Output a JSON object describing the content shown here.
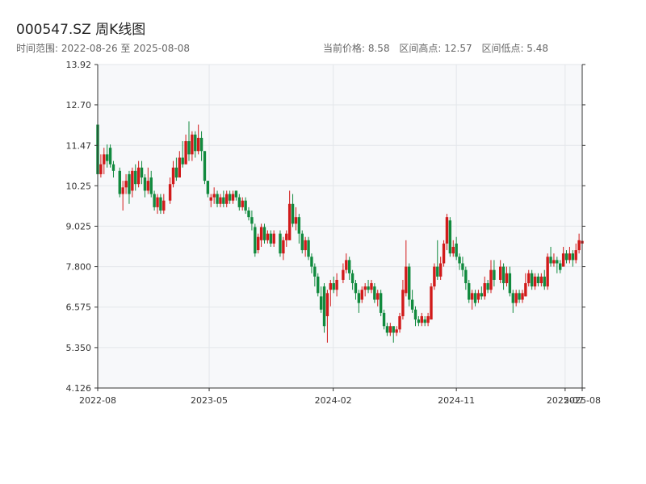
{
  "header": {
    "title": "000547.SZ 周K线图",
    "range_label": "时间范围: 2022-08-26 至 2025-08-08",
    "current_price": "当前价格: 8.58",
    "period_high": "区间高点: 12.57",
    "period_low": "区间低点: 5.48"
  },
  "colors": {
    "up": "#d11a1a",
    "down": "#118a3e",
    "plot_bg": "#f7f8fa",
    "grid": "#e3e6ea",
    "axis": "#333333"
  },
  "chart_data": {
    "type": "candlestick",
    "title": "000547.SZ 周K线图",
    "y_ticks": [
      4.126,
      5.35,
      6.575,
      7.8,
      9.025,
      10.25,
      11.47,
      12.7,
      13.92
    ],
    "y_tick_labels": [
      "4.126",
      "5.350",
      "6.575",
      "7.800",
      "9.025",
      "10.25",
      "11.47",
      "12.70",
      "13.92"
    ],
    "ylim": [
      4.126,
      13.92
    ],
    "x_ticks": [
      {
        "date": "2022-08-26",
        "label": "2022-08"
      },
      {
        "date": "2023-05-01",
        "label": "2023-05"
      },
      {
        "date": "2024-02-01",
        "label": "2024-02"
      },
      {
        "date": "2024-11-01",
        "label": "2024-11"
      },
      {
        "date": "2025-07-01",
        "label": "2025-07"
      },
      {
        "date": "2025-08-08",
        "label": "2025-08"
      }
    ],
    "xlim": [
      "2022-08-26",
      "2025-08-08"
    ],
    "grid": true,
    "up_color": "#d11a1a",
    "down_color": "#118a3e",
    "candles": [
      [
        "2022-08-26",
        12.1,
        10.6,
        12.5,
        10.5
      ],
      [
        "2022-09-02",
        10.6,
        10.9,
        11.2,
        10.5
      ],
      [
        "2022-09-09",
        10.9,
        11.2,
        11.4,
        10.6
      ],
      [
        "2022-09-16",
        11.2,
        11.0,
        11.5,
        10.8
      ],
      [
        "2022-09-23",
        11.4,
        10.9,
        11.5,
        10.8
      ],
      [
        "2022-09-30",
        10.9,
        10.7,
        11.0,
        10.5
      ],
      [
        "2022-10-14",
        10.7,
        10.0,
        10.8,
        9.9
      ],
      [
        "2022-10-21",
        10.0,
        10.2,
        10.4,
        9.5
      ],
      [
        "2022-10-28",
        10.2,
        10.4,
        10.6,
        10.0
      ],
      [
        "2022-11-04",
        10.6,
        10.0,
        10.7,
        9.7
      ],
      [
        "2022-11-11",
        10.1,
        10.7,
        10.8,
        9.9
      ],
      [
        "2022-11-18",
        10.7,
        10.3,
        10.9,
        10.1
      ],
      [
        "2022-11-25",
        10.3,
        10.8,
        11.0,
        10.2
      ],
      [
        "2022-12-02",
        10.8,
        10.5,
        11.0,
        10.3
      ],
      [
        "2022-12-09",
        10.5,
        10.1,
        10.6,
        9.9
      ],
      [
        "2022-12-16",
        10.1,
        10.4,
        10.8,
        10.0
      ],
      [
        "2022-12-23",
        10.5,
        10.0,
        10.7,
        9.9
      ],
      [
        "2022-12-30",
        10.0,
        9.6,
        10.1,
        9.5
      ],
      [
        "2023-01-06",
        9.6,
        9.9,
        10.0,
        9.4
      ],
      [
        "2023-01-13",
        9.9,
        9.5,
        10.0,
        9.4
      ],
      [
        "2023-01-20",
        9.5,
        9.8,
        10.0,
        9.4
      ],
      [
        "2023-02-03",
        9.8,
        10.3,
        10.5,
        9.7
      ],
      [
        "2023-02-10",
        10.3,
        10.8,
        11.0,
        10.2
      ],
      [
        "2023-02-17",
        10.8,
        10.5,
        11.1,
        10.4
      ],
      [
        "2023-02-24",
        10.5,
        11.1,
        11.3,
        10.5
      ],
      [
        "2023-03-03",
        11.1,
        10.9,
        11.6,
        10.8
      ],
      [
        "2023-03-10",
        10.9,
        11.6,
        11.8,
        10.9
      ],
      [
        "2023-03-17",
        11.6,
        11.2,
        12.2,
        11.0
      ],
      [
        "2023-03-24",
        11.2,
        11.8,
        11.9,
        11.0
      ],
      [
        "2023-03-31",
        11.8,
        11.3,
        11.9,
        11.1
      ],
      [
        "2023-04-07",
        11.3,
        11.7,
        12.1,
        11.2
      ],
      [
        "2023-04-14",
        11.7,
        11.3,
        11.9,
        11.0
      ],
      [
        "2023-04-21",
        11.3,
        10.4,
        11.3,
        10.3
      ],
      [
        "2023-04-28",
        10.4,
        10.0,
        10.4,
        9.9
      ],
      [
        "2023-05-05",
        9.8,
        9.9,
        10.0,
        9.6
      ],
      [
        "2023-05-12",
        9.9,
        10.0,
        10.2,
        9.7
      ],
      [
        "2023-05-19",
        10.0,
        9.7,
        10.1,
        9.6
      ],
      [
        "2023-05-26",
        9.7,
        9.9,
        10.0,
        9.6
      ],
      [
        "2023-06-02",
        9.9,
        9.7,
        10.1,
        9.6
      ],
      [
        "2023-06-09",
        9.7,
        10.0,
        10.1,
        9.6
      ],
      [
        "2023-06-16",
        10.0,
        9.8,
        10.1,
        9.7
      ],
      [
        "2023-06-23",
        9.8,
        10.0,
        10.1,
        9.7
      ],
      [
        "2023-06-30",
        10.1,
        9.9,
        10.1,
        9.8
      ],
      [
        "2023-07-07",
        9.9,
        9.6,
        10.0,
        9.5
      ],
      [
        "2023-07-14",
        9.6,
        9.8,
        9.9,
        9.5
      ],
      [
        "2023-07-21",
        9.8,
        9.5,
        9.9,
        9.4
      ],
      [
        "2023-07-28",
        9.5,
        9.3,
        9.6,
        9.2
      ],
      [
        "2023-08-04",
        9.3,
        9.1,
        9.5,
        8.9
      ],
      [
        "2023-08-11",
        9.0,
        8.2,
        9.1,
        8.1
      ],
      [
        "2023-08-18",
        8.3,
        8.7,
        8.8,
        8.2
      ],
      [
        "2023-08-25",
        8.6,
        9.0,
        9.1,
        8.4
      ],
      [
        "2023-09-01",
        9.0,
        8.6,
        9.1,
        8.5
      ],
      [
        "2023-09-08",
        8.6,
        8.8,
        8.9,
        8.5
      ],
      [
        "2023-09-15",
        8.8,
        8.5,
        8.9,
        8.4
      ],
      [
        "2023-09-22",
        8.5,
        8.8,
        8.9,
        8.4
      ],
      [
        "2023-10-06",
        8.8,
        8.2,
        8.9,
        8.1
      ],
      [
        "2023-10-13",
        8.2,
        8.6,
        8.7,
        8.0
      ],
      [
        "2023-10-20",
        8.6,
        8.8,
        8.9,
        8.4
      ],
      [
        "2023-10-27",
        8.6,
        9.7,
        10.1,
        8.6
      ],
      [
        "2023-11-03",
        9.7,
        9.1,
        10.0,
        9.0
      ],
      [
        "2023-11-10",
        9.1,
        9.3,
        9.6,
        8.9
      ],
      [
        "2023-11-17",
        9.3,
        8.8,
        9.4,
        8.5
      ],
      [
        "2023-11-24",
        8.8,
        8.3,
        8.9,
        8.2
      ],
      [
        "2023-12-01",
        8.3,
        8.6,
        8.7,
        8.1
      ],
      [
        "2023-12-08",
        8.6,
        8.1,
        8.7,
        8.0
      ],
      [
        "2023-12-15",
        8.1,
        7.8,
        8.2,
        7.6
      ],
      [
        "2023-12-22",
        7.8,
        7.5,
        7.9,
        7.2
      ],
      [
        "2023-12-29",
        7.5,
        7.0,
        7.6,
        6.9
      ],
      [
        "2024-01-05",
        6.9,
        6.5,
        7.2,
        6.4
      ],
      [
        "2024-01-12",
        7.2,
        6.0,
        7.3,
        5.8
      ],
      [
        "2024-01-19",
        6.3,
        7.0,
        7.1,
        5.5
      ],
      [
        "2024-01-26",
        7.1,
        7.3,
        7.4,
        6.6
      ],
      [
        "2024-02-02",
        7.3,
        7.1,
        7.5,
        7.0
      ],
      [
        "2024-02-09",
        7.1,
        7.4,
        7.6,
        6.9
      ],
      [
        "2024-02-23",
        7.4,
        7.7,
        7.9,
        7.3
      ],
      [
        "2024-03-01",
        7.7,
        8.0,
        8.2,
        7.6
      ],
      [
        "2024-03-08",
        8.0,
        7.6,
        8.1,
        7.4
      ],
      [
        "2024-03-15",
        7.6,
        7.3,
        7.7,
        7.1
      ],
      [
        "2024-03-22",
        7.3,
        7.0,
        7.4,
        6.8
      ],
      [
        "2024-03-29",
        7.0,
        6.7,
        7.1,
        6.4
      ],
      [
        "2024-04-05",
        6.8,
        7.1,
        7.2,
        6.7
      ],
      [
        "2024-04-12",
        7.1,
        7.2,
        7.3,
        6.9
      ],
      [
        "2024-04-19",
        7.2,
        7.1,
        7.4,
        7.0
      ],
      [
        "2024-04-26",
        7.1,
        7.3,
        7.4,
        7.0
      ],
      [
        "2024-05-03",
        7.2,
        6.8,
        7.3,
        6.7
      ],
      [
        "2024-05-10",
        6.8,
        7.0,
        7.1,
        6.6
      ],
      [
        "2024-05-17",
        7.0,
        6.4,
        7.1,
        6.3
      ],
      [
        "2024-05-24",
        6.4,
        6.0,
        6.5,
        5.9
      ],
      [
        "2024-05-31",
        6.0,
        5.8,
        6.1,
        5.7
      ],
      [
        "2024-06-07",
        5.8,
        6.0,
        6.1,
        5.7
      ],
      [
        "2024-06-14",
        6.0,
        5.8,
        6.0,
        5.5
      ],
      [
        "2024-06-21",
        5.8,
        5.9,
        6.0,
        5.7
      ],
      [
        "2024-06-28",
        5.9,
        6.3,
        6.4,
        5.8
      ],
      [
        "2024-07-05",
        6.3,
        7.1,
        7.4,
        6.2
      ],
      [
        "2024-07-12",
        7.0,
        7.8,
        8.6,
        6.9
      ],
      [
        "2024-07-19",
        7.8,
        6.8,
        7.9,
        6.6
      ],
      [
        "2024-07-26",
        6.8,
        6.5,
        7.1,
        6.4
      ],
      [
        "2024-08-02",
        6.5,
        6.2,
        6.6,
        6.0
      ],
      [
        "2024-08-09",
        6.2,
        6.1,
        6.3,
        6.0
      ],
      [
        "2024-08-16",
        6.1,
        6.3,
        6.4,
        6.0
      ],
      [
        "2024-08-23",
        6.2,
        6.1,
        6.3,
        6.0
      ],
      [
        "2024-08-30",
        6.1,
        6.3,
        6.4,
        6.0
      ],
      [
        "2024-09-06",
        6.2,
        7.2,
        7.3,
        6.2
      ],
      [
        "2024-09-13",
        7.2,
        7.8,
        7.9,
        7.1
      ],
      [
        "2024-09-20",
        7.8,
        7.5,
        8.6,
        7.4
      ],
      [
        "2024-09-27",
        7.5,
        7.9,
        8.1,
        7.4
      ],
      [
        "2024-10-04",
        7.9,
        8.5,
        8.6,
        7.8
      ],
      [
        "2024-10-11",
        8.5,
        9.3,
        9.4,
        8.3
      ],
      [
        "2024-10-18",
        9.2,
        8.2,
        9.3,
        8.1
      ],
      [
        "2024-10-25",
        8.2,
        8.4,
        8.6,
        8.1
      ],
      [
        "2024-11-01",
        8.5,
        8.1,
        8.7,
        8.0
      ],
      [
        "2024-11-08",
        8.1,
        7.9,
        8.2,
        7.7
      ],
      [
        "2024-11-15",
        7.9,
        7.7,
        8.1,
        7.5
      ],
      [
        "2024-11-22",
        7.7,
        7.3,
        7.8,
        7.1
      ],
      [
        "2024-11-29",
        7.3,
        6.8,
        7.4,
        6.7
      ],
      [
        "2024-12-06",
        6.8,
        7.0,
        7.1,
        6.5
      ],
      [
        "2024-12-13",
        7.0,
        6.7,
        7.1,
        6.6
      ],
      [
        "2024-12-20",
        6.8,
        7.0,
        7.1,
        6.7
      ],
      [
        "2024-12-27",
        7.0,
        6.9,
        7.2,
        6.8
      ],
      [
        "2025-01-03",
        6.9,
        7.3,
        7.5,
        6.8
      ],
      [
        "2025-01-10",
        7.3,
        7.1,
        7.4,
        7.0
      ],
      [
        "2025-01-17",
        7.1,
        7.7,
        8.0,
        7.0
      ],
      [
        "2025-01-24",
        7.7,
        7.4,
        8.0,
        7.2
      ],
      [
        "2025-02-07",
        7.4,
        7.8,
        8.0,
        7.3
      ],
      [
        "2025-02-14",
        7.8,
        7.3,
        7.9,
        7.1
      ],
      [
        "2025-02-21",
        7.3,
        7.6,
        7.8,
        7.2
      ],
      [
        "2025-02-28",
        7.6,
        7.0,
        7.8,
        6.9
      ],
      [
        "2025-03-07",
        7.0,
        6.7,
        7.1,
        6.4
      ],
      [
        "2025-03-14",
        6.7,
        7.0,
        7.1,
        6.6
      ],
      [
        "2025-03-21",
        7.0,
        6.8,
        7.1,
        6.7
      ],
      [
        "2025-03-28",
        6.8,
        7.0,
        7.1,
        6.7
      ],
      [
        "2025-04-04",
        6.9,
        7.3,
        7.6,
        6.9
      ],
      [
        "2025-04-11",
        7.3,
        7.6,
        7.7,
        7.2
      ],
      [
        "2025-04-18",
        7.6,
        7.2,
        7.7,
        7.1
      ],
      [
        "2025-04-25",
        7.2,
        7.5,
        7.6,
        7.1
      ],
      [
        "2025-05-02",
        7.5,
        7.3,
        7.6,
        7.2
      ],
      [
        "2025-05-09",
        7.3,
        7.5,
        7.6,
        7.2
      ],
      [
        "2025-05-16",
        7.5,
        7.2,
        7.7,
        7.1
      ],
      [
        "2025-05-23",
        7.2,
        8.1,
        8.2,
        7.1
      ],
      [
        "2025-05-30",
        8.1,
        7.9,
        8.4,
        7.8
      ],
      [
        "2025-06-06",
        7.9,
        8.0,
        8.2,
        7.8
      ],
      [
        "2025-06-13",
        8.0,
        7.9,
        8.1,
        7.6
      ],
      [
        "2025-06-20",
        7.9,
        7.7,
        8.0,
        7.6
      ],
      [
        "2025-06-27",
        7.8,
        8.2,
        8.4,
        7.8
      ],
      [
        "2025-07-04",
        8.2,
        8.0,
        8.3,
        7.9
      ],
      [
        "2025-07-11",
        8.0,
        8.2,
        8.4,
        7.9
      ],
      [
        "2025-07-18",
        8.2,
        8.0,
        8.3,
        7.8
      ],
      [
        "2025-07-25",
        8.0,
        8.3,
        8.5,
        7.9
      ],
      [
        "2025-08-01",
        8.3,
        8.6,
        8.8,
        8.2
      ],
      [
        "2025-08-08",
        8.5,
        8.58,
        8.7,
        8.4
      ]
    ]
  }
}
